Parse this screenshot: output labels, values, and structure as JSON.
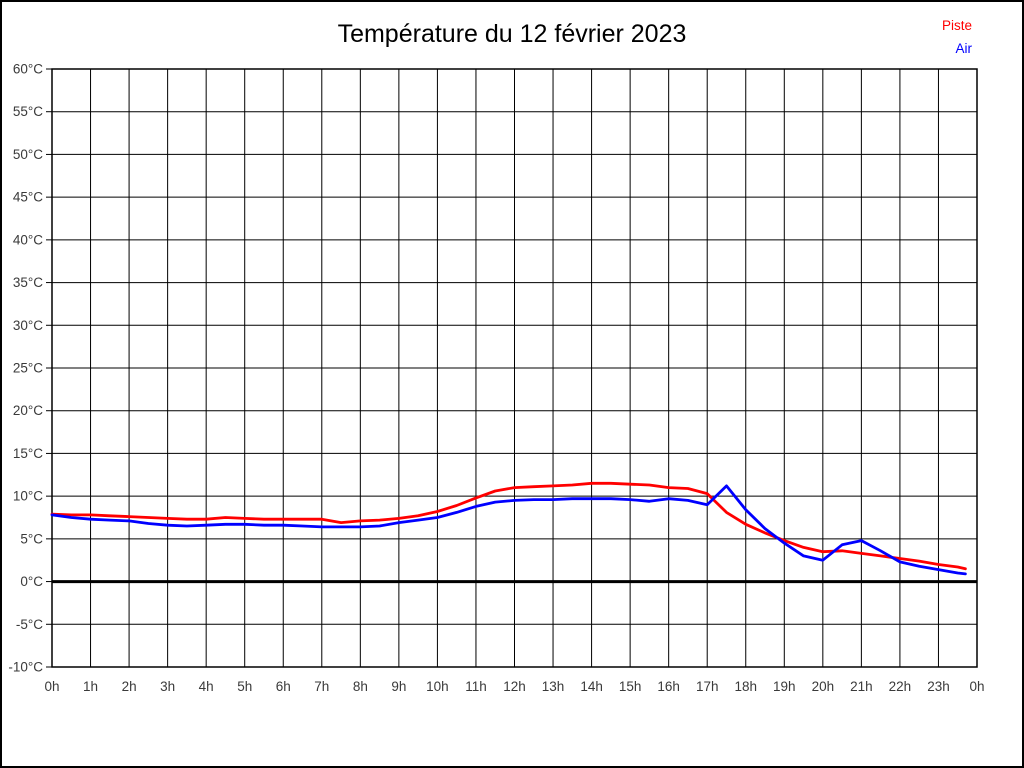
{
  "title": "Température du 12 février 2023",
  "legend": [
    {
      "label": "Piste",
      "color": "#ff0000"
    },
    {
      "label": "Air",
      "color": "#0000ff"
    }
  ],
  "chart_data": {
    "type": "line",
    "title": "Température du 12 février 2023",
    "xlabel": "",
    "ylabel": "",
    "x_unit": "h",
    "y_unit": "°C",
    "xlim": [
      0,
      24
    ],
    "ylim": [
      -10,
      60
    ],
    "grid": true,
    "legend_position": "top-right",
    "zero_line": {
      "value": 0,
      "color": "#000000",
      "width": 3
    },
    "x_tick_labels": [
      "0h",
      "1h",
      "2h",
      "3h",
      "4h",
      "5h",
      "6h",
      "7h",
      "8h",
      "9h",
      "10h",
      "11h",
      "12h",
      "13h",
      "14h",
      "15h",
      "16h",
      "17h",
      "18h",
      "19h",
      "20h",
      "21h",
      "22h",
      "23h",
      "0h"
    ],
    "x_tick_values": [
      0,
      1,
      2,
      3,
      4,
      5,
      6,
      7,
      8,
      9,
      10,
      11,
      12,
      13,
      14,
      15,
      16,
      17,
      18,
      19,
      20,
      21,
      22,
      23,
      24
    ],
    "y_tick_labels": [
      "60°C",
      "55°C",
      "50°C",
      "45°C",
      "40°C",
      "35°C",
      "30°C",
      "25°C",
      "20°C",
      "15°C",
      "10°C",
      "5°C",
      "0°C",
      "-5°C",
      "-10°C"
    ],
    "y_tick_values": [
      60,
      55,
      50,
      45,
      40,
      35,
      30,
      25,
      20,
      15,
      10,
      5,
      0,
      -5,
      -10
    ],
    "x": [
      0,
      0.5,
      1,
      1.5,
      2,
      2.5,
      3,
      3.5,
      4,
      4.5,
      5,
      5.5,
      6,
      6.5,
      7,
      7.5,
      8,
      8.5,
      9,
      9.5,
      10,
      10.5,
      11,
      11.5,
      12,
      12.5,
      13,
      13.5,
      14,
      14.5,
      15,
      15.5,
      16,
      16.5,
      17,
      17.5,
      18,
      18.5,
      19,
      19.5,
      20,
      20.5,
      21,
      21.5,
      22,
      22.5,
      23,
      23.5,
      23.7
    ],
    "series": [
      {
        "name": "Piste",
        "color": "#ff0000",
        "values": [
          7.9,
          7.8,
          7.8,
          7.7,
          7.6,
          7.5,
          7.4,
          7.3,
          7.3,
          7.5,
          7.4,
          7.3,
          7.3,
          7.3,
          7.3,
          6.9,
          7.1,
          7.2,
          7.4,
          7.7,
          8.2,
          8.9,
          9.8,
          10.6,
          11.0,
          11.1,
          11.2,
          11.3,
          11.5,
          11.5,
          11.4,
          11.3,
          11.0,
          10.9,
          10.3,
          8.1,
          6.7,
          5.7,
          4.8,
          4.0,
          3.5,
          3.6,
          3.3,
          3.0,
          2.7,
          2.4,
          2.0,
          1.7,
          1.5
        ]
      },
      {
        "name": "Air",
        "color": "#0000ff",
        "values": [
          7.8,
          7.5,
          7.3,
          7.2,
          7.1,
          6.8,
          6.6,
          6.5,
          6.6,
          6.7,
          6.7,
          6.6,
          6.6,
          6.5,
          6.4,
          6.4,
          6.4,
          6.5,
          6.9,
          7.2,
          7.5,
          8.1,
          8.8,
          9.3,
          9.5,
          9.6,
          9.6,
          9.7,
          9.7,
          9.7,
          9.6,
          9.4,
          9.7,
          9.5,
          9.0,
          11.2,
          8.4,
          6.2,
          4.5,
          3.0,
          2.5,
          4.3,
          4.8,
          3.6,
          2.3,
          1.8,
          1.4,
          1.0,
          0.9
        ]
      }
    ]
  }
}
